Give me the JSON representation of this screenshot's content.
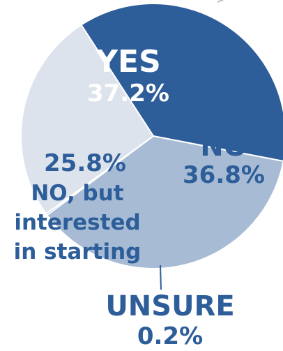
{
  "chart_data": {
    "type": "pie",
    "slices": [
      {
        "key": "yes",
        "label": "YES",
        "value": 37.2,
        "value_text": "37.2%",
        "color": "#2d5e99",
        "label_color": "#ffffff"
      },
      {
        "key": "no",
        "label": "NO",
        "value": 36.8,
        "value_text": "36.8%",
        "color": "#a7bbd4",
        "label_color": "#2d5e99"
      },
      {
        "key": "unsure",
        "label": "UNSURE",
        "value": 0.2,
        "value_text": "0.2%",
        "color": "#2d5e99",
        "label_color": "#2d5e99"
      },
      {
        "key": "no-interested",
        "label_lines": [
          "NO, but",
          "interested",
          "in starting"
        ],
        "value": 25.8,
        "value_text": "25.8%",
        "color": "#dde3ec",
        "label_color": "#2d5e99"
      }
    ]
  }
}
